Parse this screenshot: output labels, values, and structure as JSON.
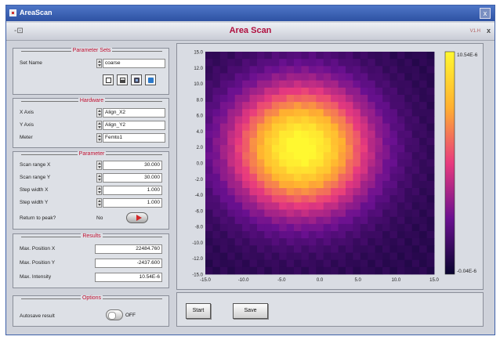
{
  "window": {
    "title": "AreaScan",
    "close_label": "x"
  },
  "header": {
    "title": "Area Scan",
    "version": "V1.H",
    "close_label": "x"
  },
  "parameter_sets": {
    "legend": "Parameter Sets",
    "set_name_label": "Set Name",
    "set_name_value": "coarse",
    "icons": [
      "new-document-icon",
      "save-icon",
      "open-icon",
      "settings-icon"
    ]
  },
  "hardware": {
    "legend": "Hardware",
    "rows": [
      {
        "label": "X Axis",
        "value": "Align_X2"
      },
      {
        "label": "Y Axis",
        "value": "Align_Y2"
      },
      {
        "label": "Meter",
        "value": "Femto1"
      }
    ]
  },
  "parameter": {
    "legend": "Parameter",
    "rows": [
      {
        "label": "Scan range X",
        "value": "30.000"
      },
      {
        "label": "Scan range Y",
        "value": "30.000"
      },
      {
        "label": "Step width X",
        "value": "1.000"
      },
      {
        "label": "Step width Y",
        "value": "1.000"
      }
    ],
    "return_label": "Return to peak?",
    "return_value": "No"
  },
  "results": {
    "legend": "Results",
    "rows": [
      {
        "label": "Max. Position X",
        "value": "22484.760"
      },
      {
        "label": "Max. Position Y",
        "value": "-2437.600"
      },
      {
        "label": "Max. Intensity",
        "value": "10.54E-6"
      }
    ]
  },
  "options": {
    "legend": "Options",
    "autosave_label": "Autosave result",
    "autosave_state": "OFF"
  },
  "buttons": {
    "start": "Start",
    "save": "Save"
  },
  "colors": {
    "accent": "#c01030"
  },
  "chart_data": {
    "type": "heatmap",
    "x_ticks": [
      "-15.0",
      "-10.0",
      "-5.0",
      "0.0",
      "5.0",
      "10.0",
      "15.0"
    ],
    "y_ticks": [
      "15.0",
      "12.0",
      "10.0",
      "8.0",
      "6.0",
      "4.0",
      "2.0",
      "0.0",
      "-2.0",
      "-4.0",
      "-6.0",
      "-8.0",
      "-10.0",
      "-12.0",
      "-15.0"
    ],
    "xlim": [
      -15,
      15
    ],
    "ylim": [
      -15,
      15
    ],
    "colorbar": {
      "max_label": "10.54E-6",
      "min_label": "-0.04E-6"
    },
    "peak": {
      "x": -2.5,
      "y": 2.0
    },
    "grid": false
  }
}
